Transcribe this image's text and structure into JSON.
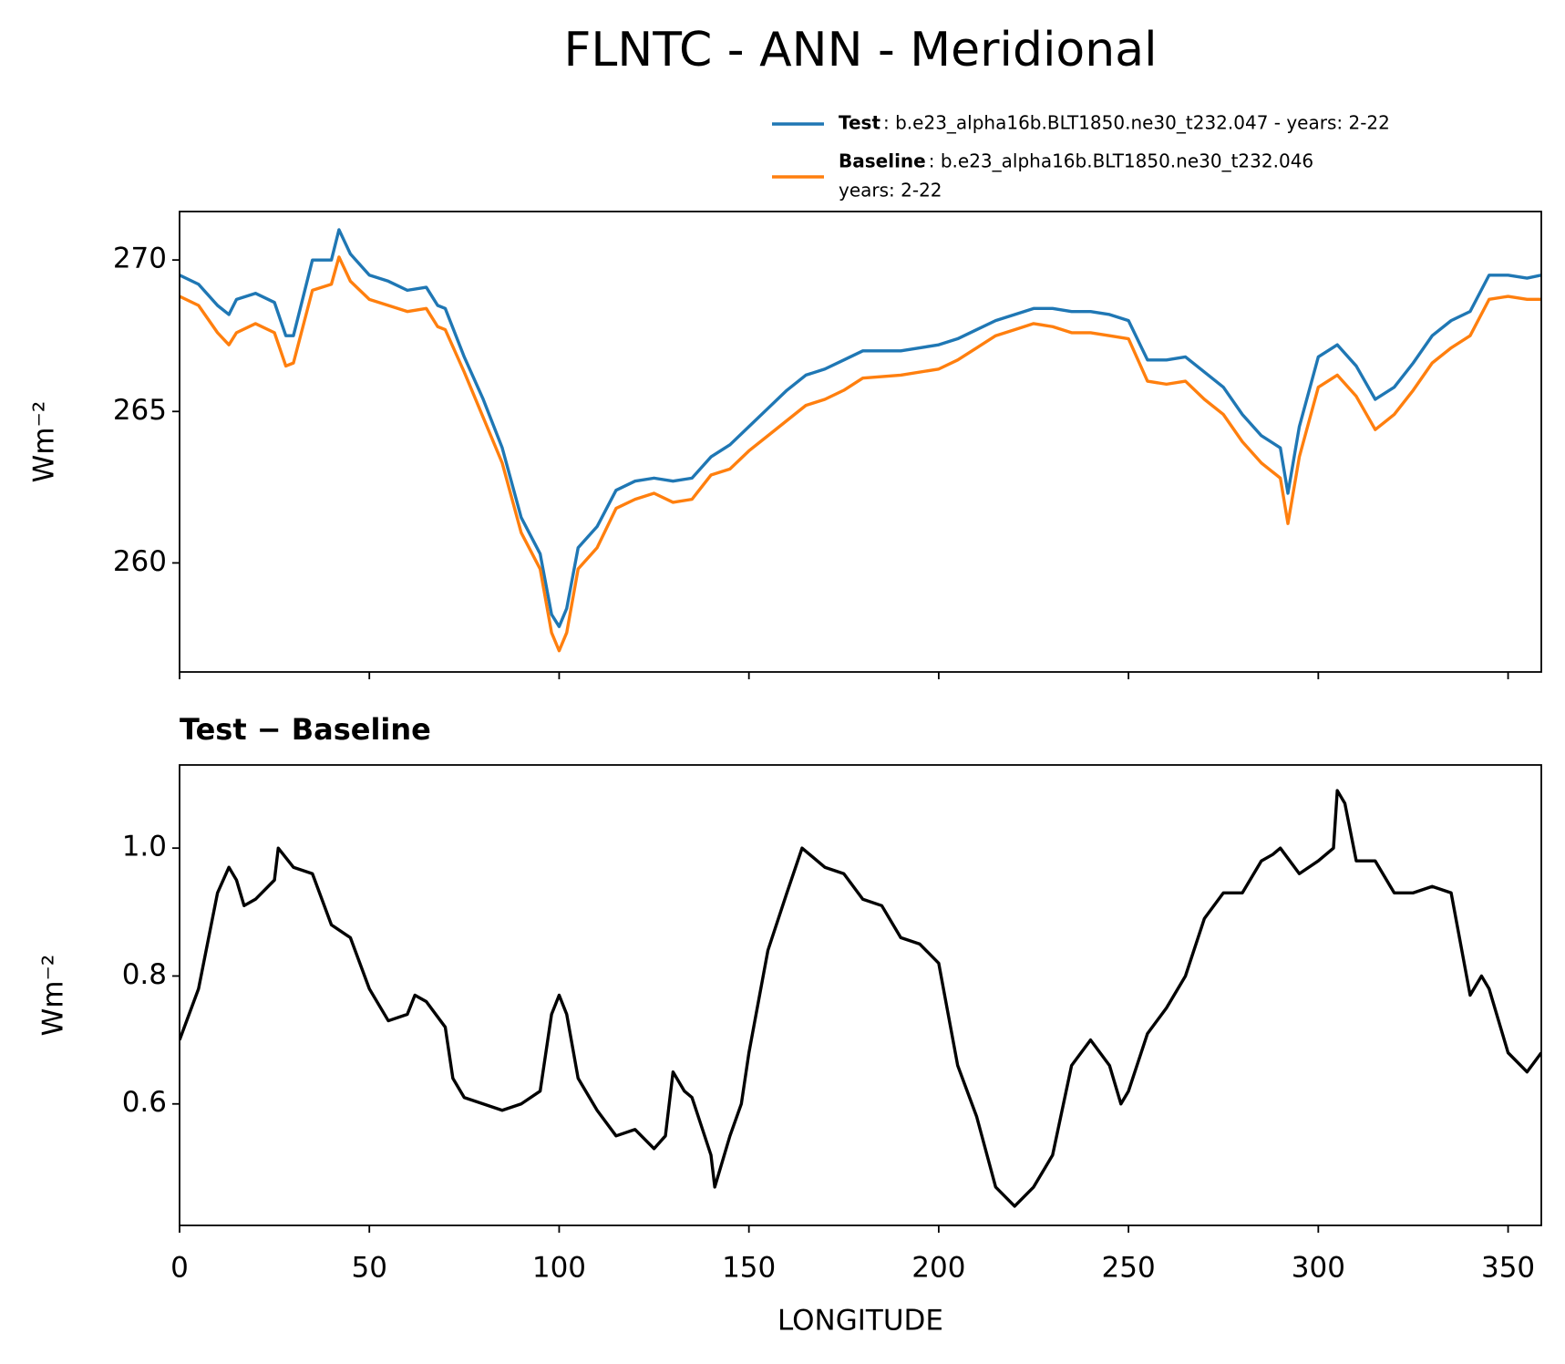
{
  "title": "FLNTC - ANN - Meridional",
  "chart_data": [
    {
      "type": "line",
      "ylabel": "Wm⁻²",
      "x": [
        0,
        5,
        10,
        13,
        15,
        20,
        25,
        28,
        30,
        35,
        40,
        42,
        45,
        50,
        55,
        60,
        65,
        68,
        70,
        75,
        80,
        85,
        90,
        95,
        98,
        100,
        102,
        105,
        110,
        115,
        120,
        125,
        130,
        135,
        140,
        145,
        150,
        155,
        160,
        165,
        170,
        175,
        180,
        190,
        200,
        205,
        210,
        215,
        220,
        225,
        230,
        235,
        240,
        245,
        250,
        255,
        260,
        265,
        270,
        275,
        280,
        285,
        290,
        292,
        295,
        300,
        305,
        310,
        315,
        320,
        325,
        330,
        335,
        340,
        345,
        350,
        355,
        358.75
      ],
      "series": [
        {
          "name": "Test",
          "description": [
            ": b.e23_alpha16b.BLT1850.ne30_t232.047 - years: 2-22"
          ],
          "color": "#1f77b4",
          "values": [
            269.5,
            269.2,
            268.5,
            268.2,
            268.7,
            268.9,
            268.6,
            267.5,
            267.5,
            270.0,
            270.0,
            271.0,
            270.2,
            269.5,
            269.3,
            269.0,
            269.1,
            268.5,
            268.4,
            266.8,
            265.4,
            263.8,
            261.5,
            260.3,
            258.3,
            257.9,
            258.5,
            260.5,
            261.2,
            262.4,
            262.7,
            262.8,
            262.7,
            262.8,
            263.5,
            263.9,
            264.5,
            265.1,
            265.7,
            266.2,
            266.4,
            266.7,
            267.0,
            267.0,
            267.2,
            267.4,
            267.7,
            268.0,
            268.2,
            268.4,
            268.4,
            268.3,
            268.3,
            268.2,
            268.0,
            266.7,
            266.7,
            266.8,
            266.3,
            265.8,
            264.9,
            264.2,
            263.8,
            262.3,
            264.5,
            266.8,
            267.2,
            266.5,
            265.4,
            265.8,
            266.6,
            267.5,
            268.0,
            268.3,
            269.5,
            269.5,
            269.4,
            269.5
          ]
        },
        {
          "name": "Baseline",
          "description": [
            ": b.e23_alpha16b.BLT1850.ne30_t232.046",
            "years: 2-22"
          ],
          "color": "#ff7f0e",
          "values": [
            268.8,
            268.5,
            267.6,
            267.2,
            267.6,
            267.9,
            267.6,
            266.5,
            266.6,
            269.0,
            269.2,
            270.1,
            269.3,
            268.7,
            268.5,
            268.3,
            268.4,
            267.8,
            267.7,
            266.3,
            264.8,
            263.3,
            261.0,
            259.8,
            257.7,
            257.1,
            257.7,
            259.8,
            260.5,
            261.8,
            262.1,
            262.3,
            262.0,
            262.1,
            262.9,
            263.1,
            263.7,
            264.2,
            264.7,
            265.2,
            265.4,
            265.7,
            266.1,
            266.2,
            266.4,
            266.7,
            267.1,
            267.5,
            267.7,
            267.9,
            267.8,
            267.6,
            267.6,
            267.5,
            267.4,
            266.0,
            265.9,
            266.0,
            265.4,
            264.9,
            264.0,
            263.3,
            262.8,
            261.3,
            263.5,
            265.8,
            266.2,
            265.5,
            264.4,
            264.9,
            265.7,
            266.6,
            267.1,
            267.5,
            268.7,
            268.8,
            268.7,
            268.7
          ]
        }
      ],
      "xlim": [
        0,
        358.75
      ],
      "xticks": [
        0,
        50,
        100,
        150,
        200,
        250,
        300,
        350
      ],
      "xticklabels": false,
      "ylim": [
        256.4,
        271.6
      ],
      "yticks": [
        260,
        265,
        270
      ],
      "legend": "upper right"
    },
    {
      "type": "line",
      "title": "Test − Baseline",
      "xlabel": "LONGITUDE",
      "ylabel": "Wm⁻²",
      "x": [
        0,
        5,
        10,
        13,
        15,
        17,
        20,
        25,
        26,
        30,
        35,
        40,
        45,
        50,
        55,
        60,
        62,
        65,
        70,
        72,
        75,
        80,
        85,
        90,
        95,
        98,
        100,
        102,
        105,
        110,
        115,
        120,
        125,
        128,
        130,
        133,
        135,
        140,
        141,
        145,
        148,
        150,
        155,
        160,
        164,
        170,
        175,
        180,
        185,
        190,
        195,
        200,
        205,
        210,
        215,
        220,
        225,
        230,
        235,
        240,
        245,
        248,
        250,
        255,
        260,
        265,
        270,
        275,
        280,
        285,
        288,
        290,
        295,
        300,
        304,
        305,
        307,
        310,
        315,
        320,
        325,
        330,
        335,
        340,
        343,
        345,
        350,
        355,
        358.75
      ],
      "values": [
        0.7,
        0.78,
        0.93,
        0.97,
        0.95,
        0.91,
        0.92,
        0.95,
        1.0,
        0.97,
        0.96,
        0.88,
        0.86,
        0.78,
        0.73,
        0.74,
        0.77,
        0.76,
        0.72,
        0.64,
        0.61,
        0.6,
        0.59,
        0.6,
        0.62,
        0.74,
        0.77,
        0.74,
        0.64,
        0.59,
        0.55,
        0.56,
        0.53,
        0.55,
        0.65,
        0.62,
        0.61,
        0.52,
        0.47,
        0.55,
        0.6,
        0.68,
        0.84,
        0.93,
        1.0,
        0.97,
        0.96,
        0.92,
        0.91,
        0.86,
        0.85,
        0.82,
        0.66,
        0.58,
        0.47,
        0.44,
        0.47,
        0.52,
        0.66,
        0.7,
        0.66,
        0.6,
        0.62,
        0.71,
        0.75,
        0.8,
        0.89,
        0.93,
        0.93,
        0.98,
        0.99,
        1.0,
        0.96,
        0.98,
        1.0,
        1.09,
        1.07,
        0.98,
        0.98,
        0.93,
        0.93,
        0.94,
        0.93,
        0.77,
        0.8,
        0.78,
        0.68,
        0.65,
        0.68
      ],
      "color": "#000000",
      "xlim": [
        0,
        358.75
      ],
      "xticks": [
        0,
        50,
        100,
        150,
        200,
        250,
        300,
        350
      ],
      "ylim": [
        0.41,
        1.13
      ],
      "yticks": [
        {
          "value": 0.6,
          "label": "0.6"
        },
        {
          "value": 0.8,
          "label": "0.8"
        },
        {
          "value": 1.0,
          "label": "1.0"
        }
      ]
    }
  ]
}
